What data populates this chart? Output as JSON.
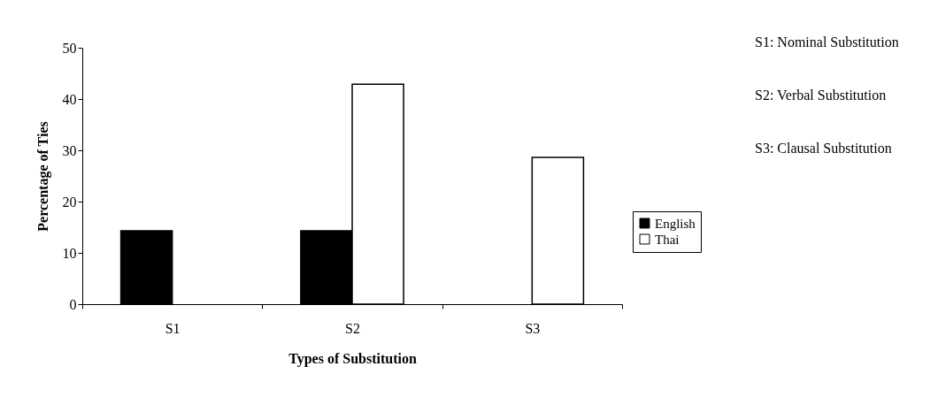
{
  "chart_data": {
    "type": "bar",
    "xlabel": "Types of Substitution",
    "ylabel": "Percentage of Ties",
    "categories": [
      "S1",
      "S2",
      "S3"
    ],
    "series": [
      {
        "name": "English",
        "color": "#000000",
        "values": [
          14.3,
          14.3,
          null
        ]
      },
      {
        "name": "Thai",
        "color": "#ffffff",
        "values": [
          null,
          42.9,
          28.6
        ]
      }
    ],
    "ylim": [
      0,
      50
    ],
    "yticks": [
      0,
      10,
      20,
      30,
      40,
      50
    ],
    "grid": false,
    "legend": "right",
    "annotations": [
      "S1: Nominal Substitution",
      "S2: Verbal Substitution",
      "S3: Clausal Substitution"
    ]
  }
}
